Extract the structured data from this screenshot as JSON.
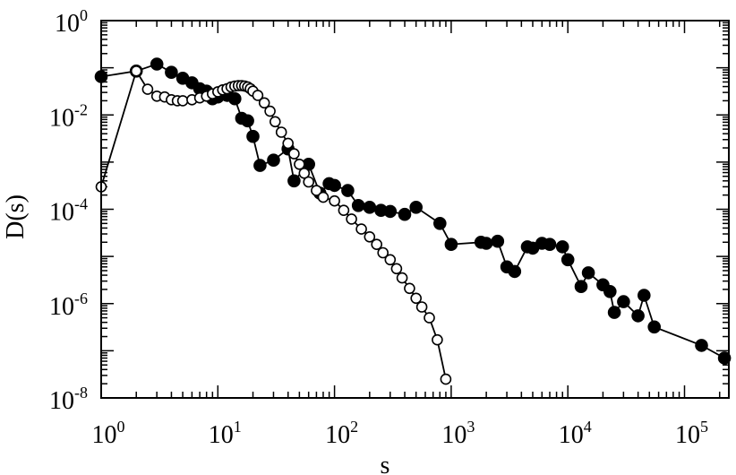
{
  "chart_data": {
    "type": "scatter",
    "title": "",
    "xlabel": "s",
    "ylabel": "D(s)",
    "x_scale": "log",
    "y_scale": "log",
    "xlim": [
      1,
      300000
    ],
    "ylim": [
      1e-08,
      1
    ],
    "grid": false,
    "x_ticks": [
      {
        "base": "10",
        "exp": "0",
        "value": 1
      },
      {
        "base": "10",
        "exp": "1",
        "value": 10
      },
      {
        "base": "10",
        "exp": "2",
        "value": 100
      },
      {
        "base": "10",
        "exp": "3",
        "value": 1000
      },
      {
        "base": "10",
        "exp": "4",
        "value": 10000
      },
      {
        "base": "10",
        "exp": "5",
        "value": 100000
      }
    ],
    "y_ticks": [
      {
        "base": "10",
        "exp": "0",
        "value": 1
      },
      {
        "base": "10",
        "exp": "-2",
        "value": 0.01
      },
      {
        "base": "10",
        "exp": "-4",
        "value": 0.0001
      },
      {
        "base": "10",
        "exp": "-6",
        "value": 1e-06
      },
      {
        "base": "10",
        "exp": "-8",
        "value": 1e-08
      }
    ],
    "series": [
      {
        "marker": "filled-circle",
        "color": "#000000",
        "points": [
          [
            1,
            0.065
          ],
          [
            2,
            0.085
          ],
          [
            3,
            0.12
          ],
          [
            4,
            0.08
          ],
          [
            5,
            0.06
          ],
          [
            6,
            0.048
          ],
          [
            7,
            0.036
          ],
          [
            8,
            0.032
          ],
          [
            9,
            0.022
          ],
          [
            10,
            0.024
          ],
          [
            12,
            0.026
          ],
          [
            14,
            0.022
          ],
          [
            16,
            0.0085
          ],
          [
            18,
            0.0075
          ],
          [
            20,
            0.0035
          ],
          [
            23,
            0.00085
          ],
          [
            30,
            0.0011
          ],
          [
            40,
            0.0019
          ],
          [
            45,
            0.0004
          ],
          [
            60,
            0.0009
          ],
          [
            75,
            0.00022
          ],
          [
            90,
            0.00035
          ],
          [
            100,
            0.00032
          ],
          [
            130,
            0.00025
          ],
          [
            160,
            0.00012
          ],
          [
            200,
            0.00011
          ],
          [
            250,
            9.5e-05
          ],
          [
            300,
            9e-05
          ],
          [
            400,
            7.8e-05
          ],
          [
            500,
            0.00011
          ],
          [
            800,
            5e-05
          ],
          [
            1000,
            1.8e-05
          ],
          [
            1800,
            2e-05
          ],
          [
            2000,
            1.9e-05
          ],
          [
            2500,
            2.1e-05
          ],
          [
            3000,
            6e-06
          ],
          [
            3500,
            4.8e-06
          ],
          [
            4500,
            1.6e-05
          ],
          [
            5000,
            1.5e-05
          ],
          [
            6000,
            1.9e-05
          ],
          [
            7000,
            1.8e-05
          ],
          [
            9000,
            1.6e-05
          ],
          [
            10000,
            8.5e-06
          ],
          [
            13000,
            2.3e-06
          ],
          [
            15000,
            4.5e-06
          ],
          [
            20000,
            2.5e-06
          ],
          [
            23000,
            1.8e-06
          ],
          [
            25000,
            6.5e-07
          ],
          [
            30000,
            1.1e-06
          ],
          [
            40000,
            5.5e-07
          ],
          [
            45000,
            1.5e-06
          ],
          [
            55000,
            3.2e-07
          ],
          [
            140000,
            1.3e-07
          ],
          [
            220000,
            7e-08
          ]
        ]
      },
      {
        "marker": "open-circle",
        "color": "#000000",
        "points": [
          [
            1,
            0.0003
          ],
          [
            2,
            0.085
          ],
          [
            2.5,
            0.035
          ],
          [
            3,
            0.025
          ],
          [
            3.5,
            0.024
          ],
          [
            4,
            0.021
          ],
          [
            4.5,
            0.02
          ],
          [
            5,
            0.02
          ],
          [
            6,
            0.021
          ],
          [
            7,
            0.023
          ],
          [
            8,
            0.025
          ],
          [
            9,
            0.028
          ],
          [
            10,
            0.031
          ],
          [
            11,
            0.034
          ],
          [
            12,
            0.036
          ],
          [
            13,
            0.039
          ],
          [
            14,
            0.041
          ],
          [
            15,
            0.042
          ],
          [
            16,
            0.042
          ],
          [
            17,
            0.041
          ],
          [
            18,
            0.039
          ],
          [
            19,
            0.036
          ],
          [
            20,
            0.032
          ],
          [
            22,
            0.026
          ],
          [
            25,
            0.018
          ],
          [
            28,
            0.012
          ],
          [
            31,
            0.0072
          ],
          [
            35,
            0.0043
          ],
          [
            40,
            0.0025
          ],
          [
            45,
            0.0015
          ],
          [
            50,
            0.0009
          ],
          [
            55,
            0.00058
          ],
          [
            60,
            0.00038
          ],
          [
            70,
            0.00025
          ],
          [
            80,
            0.00018
          ],
          [
            100,
            0.00015
          ],
          [
            120,
            9.5e-05
          ],
          [
            140,
            6.2e-05
          ],
          [
            170,
            3.8e-05
          ],
          [
            200,
            2.6e-05
          ],
          [
            230,
            1.8e-05
          ],
          [
            260,
            1.2e-05
          ],
          [
            300,
            8.5e-06
          ],
          [
            340,
            5.5e-06
          ],
          [
            380,
            3.5e-06
          ],
          [
            440,
            2.1e-06
          ],
          [
            500,
            1.3e-06
          ],
          [
            560,
            8.5e-07
          ],
          [
            650,
            5e-07
          ],
          [
            760,
            1.7e-07
          ],
          [
            900,
            2.5e-08
          ]
        ]
      }
    ]
  }
}
